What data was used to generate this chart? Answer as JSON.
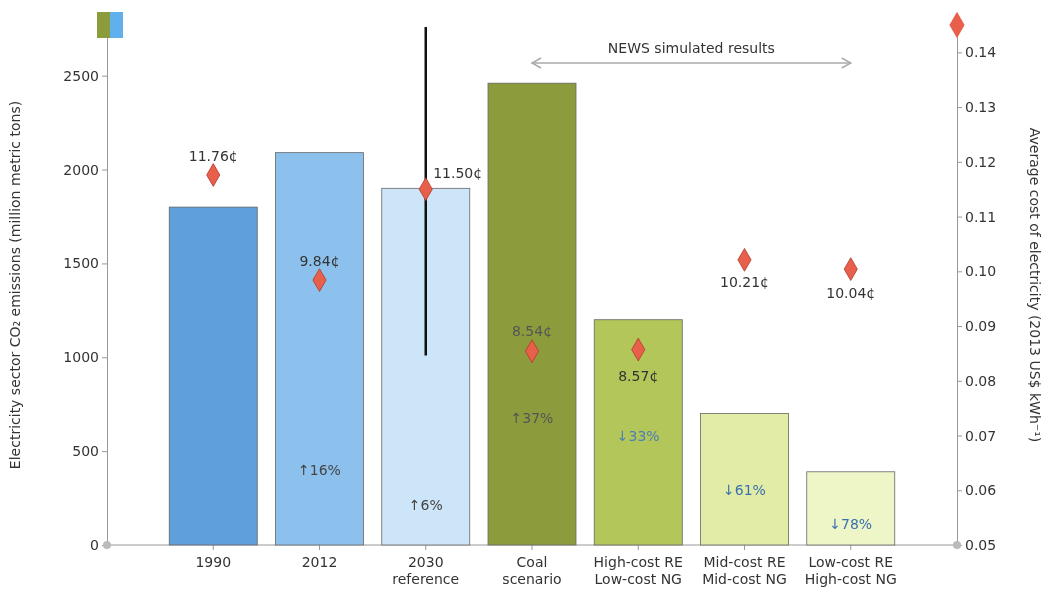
{
  "chart_data": {
    "type": "bar",
    "xlabel": null,
    "ylabel": "Electricity sector CO₂ emissions (million metric tons)",
    "y2label": "Average cost of electricity (2013 US$ kWh⁻¹)",
    "categories": [
      "1990",
      "2012",
      "2030\nreference",
      "Coal\nscenario",
      "High-cost RE\nLow-cost NG",
      "Mid-cost RE\nMid-cost NG",
      "Low-cost RE\nHigh-cost NG"
    ],
    "series": [
      {
        "colors": [
          "#5f9fda",
          "#8cc1ee",
          "#cde5f8",
          "#8c9c3c",
          "#b3c65a",
          "#e2eca6",
          "#eef5c6"
        ],
        "values": [
          1800,
          2090,
          1900,
          2460,
          1200,
          700,
          390
        ],
        "errors": [
          null,
          null,
          [
            1010,
            2760
          ],
          null,
          null,
          null,
          null
        ]
      },
      {
        "type": "scatter",
        "axis": "y2",
        "marker": "diamond",
        "color": "#e8604c",
        "values": [
          0.1176,
          0.0984,
          0.115,
          0.0854,
          0.0857,
          0.1021,
          0.1004
        ]
      }
    ],
    "ylim": [
      0,
      2770
    ],
    "yticks": [
      0,
      500,
      1000,
      1500,
      2000,
      2500
    ],
    "y2lim": [
      0.05,
      0.145
    ],
    "y2ticks": [
      {
        "value": 0.05,
        "label": "0.05"
      },
      {
        "value": 0.06,
        "label": "0.06"
      },
      {
        "value": 0.07,
        "label": "0.07"
      },
      {
        "value": 0.08,
        "label": "0.08"
      },
      {
        "value": 0.09,
        "label": "0.09"
      },
      {
        "value": 0.1,
        "label": "0.10"
      },
      {
        "value": 0.11,
        "label": "0.11"
      },
      {
        "value": 0.12,
        "label": "0.12"
      },
      {
        "value": 0.13,
        "label": "0.13"
      },
      {
        "value": 0.14,
        "label": "0.14"
      }
    ],
    "annotations": [
      "11.76¢",
      "9.84¢",
      "11.50¢",
      "8.54¢",
      "8.57¢",
      "10.21¢",
      "10.04¢",
      "↑16%",
      "↑6%",
      "↑37%",
      "↓33%",
      "↓61%",
      "↓78%",
      "NEWS simulated results"
    ]
  }
}
